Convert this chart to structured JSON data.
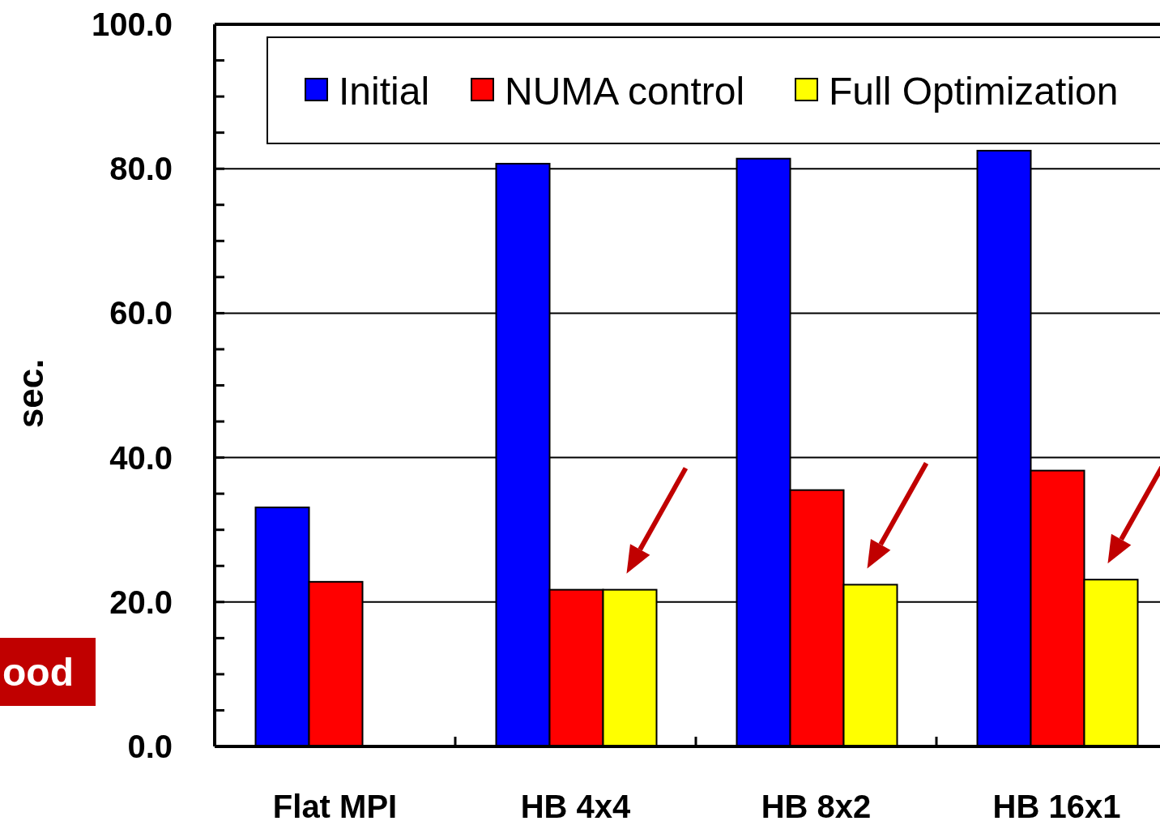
{
  "chart_data": {
    "type": "bar",
    "ylabel": "sec.",
    "categories": [
      "Flat MPI",
      "HB 4x4",
      "HB 8x2",
      "HB 16x1"
    ],
    "series": [
      {
        "name": "Initial",
        "color": "#0000ff",
        "values": [
          33.1,
          80.7,
          81.4,
          82.5
        ]
      },
      {
        "name": "NUMA control",
        "color": "#ff0000",
        "values": [
          22.8,
          21.7,
          35.5,
          38.2
        ]
      },
      {
        "name": "Full Optimization",
        "color": "#ffff00",
        "values": [
          null,
          21.7,
          22.4,
          23.1
        ]
      }
    ],
    "ylim": [
      0,
      100
    ],
    "yticks": [
      {
        "value": 0,
        "label": "0.0"
      },
      {
        "value": 5,
        "label": null
      },
      {
        "value": 10,
        "label": null
      },
      {
        "value": 15,
        "label": null
      },
      {
        "value": 20,
        "label": "20.0"
      },
      {
        "value": 25,
        "label": null
      },
      {
        "value": 30,
        "label": null
      },
      {
        "value": 35,
        "label": null
      },
      {
        "value": 40,
        "label": "40.0"
      },
      {
        "value": 45,
        "label": null
      },
      {
        "value": 50,
        "label": null
      },
      {
        "value": 55,
        "label": null
      },
      {
        "value": 60,
        "label": "60.0"
      },
      {
        "value": 65,
        "label": null
      },
      {
        "value": 70,
        "label": null
      },
      {
        "value": 75,
        "label": null
      },
      {
        "value": 80,
        "label": "80.0"
      },
      {
        "value": 85,
        "label": null
      },
      {
        "value": 90,
        "label": null
      },
      {
        "value": 95,
        "label": null
      },
      {
        "value": 100,
        "label": "100.0"
      }
    ],
    "grid": "y",
    "legend": "top",
    "annotations": [
      "ood"
    ]
  }
}
